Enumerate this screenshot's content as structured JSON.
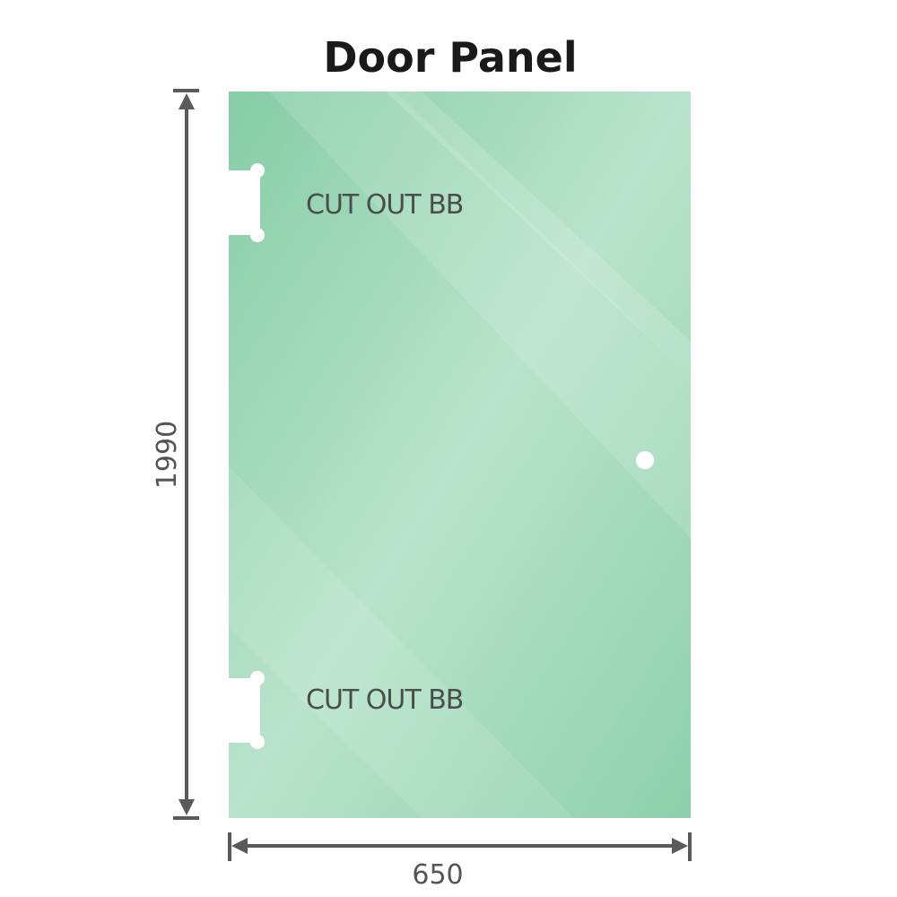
{
  "title": "Door Panel",
  "cutout_labels": [
    "CUT OUT BB",
    "CUT OUT BB"
  ],
  "dimensions": {
    "height": "1990",
    "width": "650"
  },
  "colors": {
    "glass": "#8fd0ae",
    "dimension_line": "#5a5a5a",
    "label": "#4a4f4c"
  }
}
